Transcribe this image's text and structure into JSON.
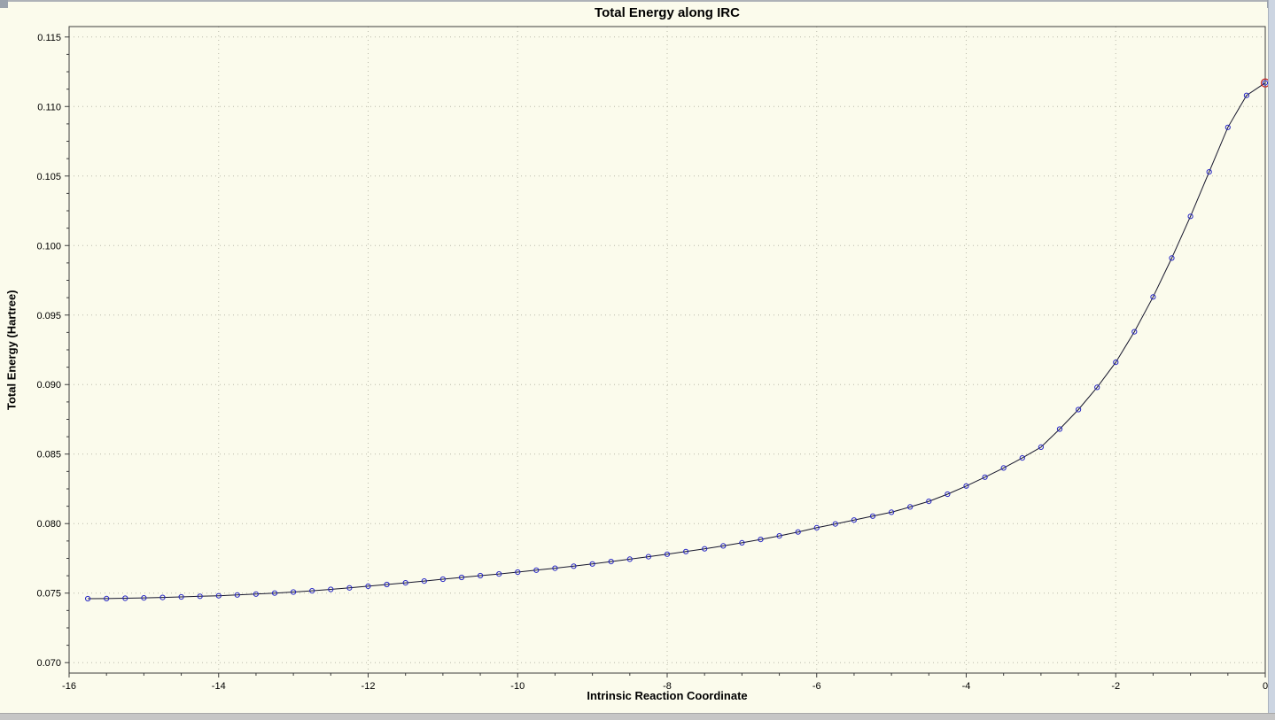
{
  "frame": {
    "background": "#fbfbec",
    "scrollbar_color": "#ccd5e2"
  },
  "chart_data": {
    "type": "line",
    "title": "Total Energy along IRC",
    "xlabel": "Intrinsic Reaction Coordinate",
    "ylabel": "Total Energy (Hartree)",
    "xlim": [
      -16,
      0
    ],
    "ylim": [
      0.07,
      0.115
    ],
    "x_ticks": [
      -16,
      -14,
      -12,
      -10,
      -8,
      -6,
      -4,
      -2,
      0
    ],
    "y_ticks": [
      0.07,
      0.075,
      0.08,
      0.085,
      0.09,
      0.095,
      0.1,
      0.105,
      0.11,
      0.115
    ],
    "grid": "dotted",
    "grid_color": "#b9b9a9",
    "legend": "none",
    "series": [
      {
        "name": "Total Energy",
        "line_color": "#16162c",
        "marker": "open-circle",
        "marker_color": "#2727c4",
        "points": [
          [
            -15.75,
            0.0746
          ],
          [
            -15.5,
            0.07461
          ],
          [
            -15.25,
            0.07463
          ],
          [
            -15.0,
            0.07466
          ],
          [
            -14.75,
            0.07469
          ],
          [
            -14.5,
            0.07473
          ],
          [
            -14.25,
            0.07477
          ],
          [
            -14.0,
            0.07481
          ],
          [
            -13.75,
            0.07487
          ],
          [
            -13.5,
            0.07493
          ],
          [
            -13.25,
            0.075
          ],
          [
            -13.0,
            0.07508
          ],
          [
            -12.75,
            0.07517
          ],
          [
            -12.5,
            0.07527
          ],
          [
            -12.25,
            0.07538
          ],
          [
            -12.0,
            0.0755
          ],
          [
            -11.75,
            0.07562
          ],
          [
            -11.5,
            0.07574
          ],
          [
            -11.25,
            0.07587
          ],
          [
            -11.0,
            0.076
          ],
          [
            -10.75,
            0.07613
          ],
          [
            -10.5,
            0.07626
          ],
          [
            -10.25,
            0.07638
          ],
          [
            -10.0,
            0.07651
          ],
          [
            -9.75,
            0.07665
          ],
          [
            -9.5,
            0.07679
          ],
          [
            -9.25,
            0.07694
          ],
          [
            -9.0,
            0.0771
          ],
          [
            -8.75,
            0.07727
          ],
          [
            -8.5,
            0.07744
          ],
          [
            -8.25,
            0.07762
          ],
          [
            -8.0,
            0.0778
          ],
          [
            -7.75,
            0.07799
          ],
          [
            -7.5,
            0.07819
          ],
          [
            -7.25,
            0.0784
          ],
          [
            -7.0,
            0.07862
          ],
          [
            -6.75,
            0.07886
          ],
          [
            -6.5,
            0.07912
          ],
          [
            -6.25,
            0.0794
          ],
          [
            -6.0,
            0.0797
          ],
          [
            -5.75,
            0.07998
          ],
          [
            -5.5,
            0.08026
          ],
          [
            -5.25,
            0.08054
          ],
          [
            -5.0,
            0.08082
          ],
          [
            -4.75,
            0.0812
          ],
          [
            -4.5,
            0.0816
          ],
          [
            -4.25,
            0.08212
          ],
          [
            -4.0,
            0.0827
          ],
          [
            -3.75,
            0.08334
          ],
          [
            -3.5,
            0.084
          ],
          [
            -3.25,
            0.08472
          ],
          [
            -3.0,
            0.0855
          ],
          [
            -2.75,
            0.0868
          ],
          [
            -2.5,
            0.0882
          ],
          [
            -2.25,
            0.0898
          ],
          [
            -2.0,
            0.0916
          ],
          [
            -1.75,
            0.0938
          ],
          [
            -1.5,
            0.0963
          ],
          [
            -1.25,
            0.0991
          ],
          [
            -1.0,
            0.1021
          ],
          [
            -0.75,
            0.1053
          ],
          [
            -0.5,
            0.1085
          ],
          [
            -0.25,
            0.1108
          ],
          [
            0.0,
            0.1117
          ]
        ]
      }
    ],
    "highlight_point": {
      "x": 0.0,
      "y": 0.1117,
      "color": "#c42727"
    }
  }
}
